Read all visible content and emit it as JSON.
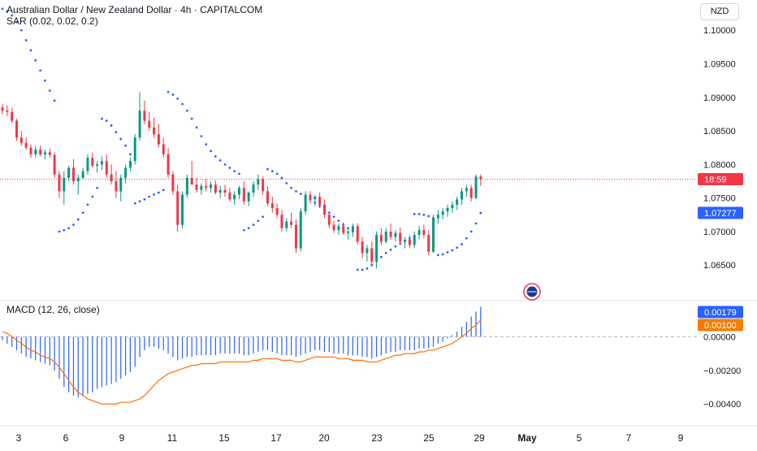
{
  "header": {
    "title": "Australian Dollar / New Zealand Dollar · 4h · CAPITALCOM",
    "sar_label": "SAR (0.02, 0.02, 0.2)",
    "currency": "NZD"
  },
  "macd_panel": {
    "label": "MACD (12, 26, close)"
  },
  "chart_data": [
    {
      "type": "candlestick",
      "title": "Australian Dollar / New Zealand Dollar · 4h · CAPITALCOM",
      "x_tick_labels": [
        "3",
        "6",
        "9",
        "11",
        "15",
        "17",
        "20",
        "23",
        "25",
        "29",
        "May",
        "5",
        "7",
        "9"
      ],
      "y_ticks": [
        1.065,
        1.07,
        1.075,
        1.08,
        1.085,
        1.09,
        1.095,
        1.1
      ],
      "y_tick_labels": [
        "1.06500",
        "1.07000",
        "1.07500",
        "1.08000",
        "1.08500",
        "1.09000",
        "1.09500",
        "1.10000"
      ],
      "ylim": [
        1.0597,
        1.1045
      ],
      "price_badge": {
        "value": 1.0778,
        "label": "18:59",
        "color": "#f23645"
      },
      "sar_badge": {
        "value": 1.07277,
        "label": "1.07277",
        "color": "#2962ff"
      },
      "up_color": "#089981",
      "down_color": "#f23645",
      "grid": false,
      "ohlc": [
        [
          1.0885,
          1.089,
          1.0875,
          1.088
        ],
        [
          1.088,
          1.0888,
          1.0872,
          1.0878
        ],
        [
          1.0878,
          1.0884,
          1.0862,
          1.0865
        ],
        [
          1.0865,
          1.0868,
          1.0835,
          1.084
        ],
        [
          1.084,
          1.085,
          1.0828,
          1.0832
        ],
        [
          1.0832,
          1.084,
          1.0822,
          1.0825
        ],
        [
          1.0825,
          1.083,
          1.081,
          1.0815
        ],
        [
          1.0815,
          1.0828,
          1.081,
          1.0822
        ],
        [
          1.0822,
          1.0828,
          1.0812,
          1.0815
        ],
        [
          1.0815,
          1.0822,
          1.0808,
          1.0818
        ],
        [
          1.0818,
          1.0824,
          1.081,
          1.0814
        ],
        [
          1.0814,
          1.0818,
          1.078,
          1.0785
        ],
        [
          1.0785,
          1.079,
          1.075,
          1.076
        ],
        [
          1.076,
          1.079,
          1.074,
          1.078
        ],
        [
          1.078,
          1.0798,
          1.0775,
          1.0795
        ],
        [
          1.0795,
          1.0808,
          1.077,
          1.0775
        ],
        [
          1.0775,
          1.0785,
          1.0755,
          1.078
        ],
        [
          1.078,
          1.0795,
          1.0778,
          1.079
        ],
        [
          1.079,
          1.0815,
          1.0785,
          1.081
        ],
        [
          1.081,
          1.0818,
          1.0795,
          1.0798
        ],
        [
          1.0798,
          1.0805,
          1.0788,
          1.08
        ],
        [
          1.08,
          1.0812,
          1.0792,
          1.0805
        ],
        [
          1.0805,
          1.0815,
          1.078,
          1.0785
        ],
        [
          1.0785,
          1.08,
          1.077,
          1.0775
        ],
        [
          1.0775,
          1.079,
          1.075,
          1.076
        ],
        [
          1.076,
          1.0785,
          1.0745,
          1.078
        ],
        [
          1.078,
          1.08,
          1.0772,
          1.0795
        ],
        [
          1.0795,
          1.081,
          1.079,
          1.0805
        ],
        [
          1.0805,
          1.0845,
          1.08,
          1.084
        ],
        [
          1.084,
          1.0908,
          1.0835,
          1.088
        ],
        [
          1.088,
          1.0895,
          1.086,
          1.0865
        ],
        [
          1.0865,
          1.0878,
          1.085,
          1.0855
        ],
        [
          1.0855,
          1.087,
          1.084,
          1.0845
        ],
        [
          1.0845,
          1.086,
          1.0825,
          1.083
        ],
        [
          1.083,
          1.084,
          1.081,
          1.0815
        ],
        [
          1.0815,
          1.0825,
          1.078,
          1.0785
        ],
        [
          1.0785,
          1.079,
          1.0755,
          1.076
        ],
        [
          1.076,
          1.077,
          1.07,
          1.071
        ],
        [
          1.071,
          1.076,
          1.0705,
          1.0755
        ],
        [
          1.0755,
          1.0785,
          1.075,
          1.078
        ],
        [
          1.078,
          1.0805,
          1.077,
          1.077
        ],
        [
          1.077,
          1.078,
          1.0758,
          1.0762
        ],
        [
          1.0762,
          1.0772,
          1.0755,
          1.0768
        ],
        [
          1.0768,
          1.0778,
          1.076,
          1.0765
        ],
        [
          1.0765,
          1.0775,
          1.0758,
          1.077
        ],
        [
          1.077,
          1.0776,
          1.0755,
          1.0758
        ],
        [
          1.0758,
          1.0768,
          1.075,
          1.0762
        ],
        [
          1.0762,
          1.077,
          1.0752,
          1.0758
        ],
        [
          1.0758,
          1.0765,
          1.0745,
          1.0748
        ],
        [
          1.0748,
          1.076,
          1.074,
          1.0755
        ],
        [
          1.0755,
          1.0768,
          1.0748,
          1.0765
        ],
        [
          1.0765,
          1.0775,
          1.074,
          1.0745
        ],
        [
          1.0745,
          1.076,
          1.0738,
          1.0758
        ],
        [
          1.0758,
          1.0775,
          1.0752,
          1.077
        ],
        [
          1.077,
          1.0785,
          1.0762,
          1.0778
        ],
        [
          1.0778,
          1.0782,
          1.0755,
          1.076
        ],
        [
          1.076,
          1.0768,
          1.0738,
          1.0742
        ],
        [
          1.0742,
          1.0752,
          1.0728,
          1.0735
        ],
        [
          1.0735,
          1.0742,
          1.072,
          1.0725
        ],
        [
          1.0725,
          1.0732,
          1.07,
          1.0705
        ],
        [
          1.0705,
          1.072,
          1.07,
          1.0715
        ],
        [
          1.0715,
          1.0728,
          1.0705,
          1.071
        ],
        [
          1.071,
          1.0718,
          1.0668,
          1.0675
        ],
        [
          1.0675,
          1.0735,
          1.067,
          1.073
        ],
        [
          1.073,
          1.076,
          1.0725,
          1.0755
        ],
        [
          1.0755,
          1.076,
          1.0742,
          1.0748
        ],
        [
          1.0748,
          1.0755,
          1.0738,
          1.0752
        ],
        [
          1.0752,
          1.0758,
          1.0735,
          1.074
        ],
        [
          1.074,
          1.0748,
          1.072,
          1.0725
        ],
        [
          1.0725,
          1.073,
          1.0705,
          1.071
        ],
        [
          1.071,
          1.0716,
          1.0698,
          1.0702
        ],
        [
          1.0702,
          1.0712,
          1.0695,
          1.0708
        ],
        [
          1.0708,
          1.0714,
          1.0695,
          1.0698
        ],
        [
          1.0698,
          1.0705,
          1.0688,
          1.07
        ],
        [
          1.07,
          1.0712,
          1.0692,
          1.0708
        ],
        [
          1.0708,
          1.0712,
          1.068,
          1.0685
        ],
        [
          1.0685,
          1.0692,
          1.066,
          1.0668
        ],
        [
          1.0668,
          1.068,
          1.0655,
          1.0675
        ],
        [
          1.0675,
          1.0685,
          1.065,
          1.0655
        ],
        [
          1.0655,
          1.07,
          1.0645,
          1.0695
        ],
        [
          1.0695,
          1.0705,
          1.068,
          1.0685
        ],
        [
          1.0685,
          1.0705,
          1.0682,
          1.07
        ],
        [
          1.07,
          1.0712,
          1.0688,
          1.0692
        ],
        [
          1.0692,
          1.0702,
          1.0685,
          1.0698
        ],
        [
          1.0698,
          1.0706,
          1.068,
          1.0685
        ],
        [
          1.0685,
          1.0692,
          1.0675,
          1.0688
        ],
        [
          1.0688,
          1.0695,
          1.0675,
          1.068
        ],
        [
          1.068,
          1.07,
          1.0675,
          1.0695
        ],
        [
          1.0695,
          1.0708,
          1.0688,
          1.0702
        ],
        [
          1.0702,
          1.071,
          1.069,
          1.0695
        ],
        [
          1.0695,
          1.0702,
          1.0665,
          1.067
        ],
        [
          1.067,
          1.0725,
          1.0668,
          1.072
        ],
        [
          1.072,
          1.0732,
          1.0712,
          1.0725
        ],
        [
          1.0725,
          1.0735,
          1.0718,
          1.073
        ],
        [
          1.073,
          1.074,
          1.0722,
          1.0735
        ],
        [
          1.0735,
          1.0745,
          1.0728,
          1.074
        ],
        [
          1.074,
          1.0752,
          1.0732,
          1.0748
        ],
        [
          1.0748,
          1.0765,
          1.074,
          1.076
        ],
        [
          1.076,
          1.077,
          1.0752,
          1.0765
        ],
        [
          1.0765,
          1.077,
          1.0745,
          1.075
        ],
        [
          1.075,
          1.0785,
          1.0748,
          1.0782
        ],
        [
          1.0782,
          1.0785,
          1.0768,
          1.0778
        ]
      ],
      "sar": [
        [
          0,
          1.1032
        ],
        [
          1,
          1.1028
        ],
        [
          2,
          1.1022
        ],
        [
          3,
          1.1012
        ],
        [
          4,
          1.1
        ],
        [
          5,
          1.0985
        ],
        [
          6,
          1.097
        ],
        [
          7,
          1.0955
        ],
        [
          8,
          1.094
        ],
        [
          9,
          1.0925
        ],
        [
          10,
          1.091
        ],
        [
          11,
          1.0895
        ],
        [
          12,
          1.07
        ],
        [
          13,
          1.0702
        ],
        [
          14,
          1.0705
        ],
        [
          15,
          1.071
        ],
        [
          16,
          1.0718
        ],
        [
          17,
          1.0728
        ],
        [
          18,
          1.074
        ],
        [
          19,
          1.0752
        ],
        [
          20,
          1.0765
        ],
        [
          21,
          1.0868
        ],
        [
          22,
          1.0865
        ],
        [
          23,
          1.0858
        ],
        [
          24,
          1.0848
        ],
        [
          25,
          1.0838
        ],
        [
          26,
          1.0828
        ],
        [
          27,
          1.0815
        ],
        [
          28,
          1.0742
        ],
        [
          29,
          1.0745
        ],
        [
          30,
          1.0748
        ],
        [
          31,
          1.0752
        ],
        [
          32,
          1.0755
        ],
        [
          33,
          1.0758
        ],
        [
          34,
          1.0762
        ],
        [
          35,
          1.0908
        ],
        [
          36,
          1.0904
        ],
        [
          37,
          1.0898
        ],
        [
          38,
          1.089
        ],
        [
          39,
          1.088
        ],
        [
          40,
          1.0868
        ],
        [
          41,
          1.0855
        ],
        [
          42,
          1.0842
        ],
        [
          43,
          1.083
        ],
        [
          44,
          1.082
        ],
        [
          45,
          1.0812
        ],
        [
          46,
          1.0806
        ],
        [
          47,
          1.08
        ],
        [
          48,
          1.0795
        ],
        [
          49,
          1.079
        ],
        [
          50,
          1.0786
        ],
        [
          51,
          1.0702
        ],
        [
          52,
          1.0705
        ],
        [
          53,
          1.071
        ],
        [
          54,
          1.0716
        ],
        [
          55,
          1.0722
        ],
        [
          56,
          1.0793
        ],
        [
          57,
          1.079
        ],
        [
          58,
          1.0786
        ],
        [
          59,
          1.078
        ],
        [
          60,
          1.0772
        ],
        [
          61,
          1.0765
        ],
        [
          62,
          1.076
        ],
        [
          63,
          1.0756
        ],
        [
          64,
          1.0752
        ],
        [
          65,
          1.0748
        ],
        [
          66,
          1.0743
        ],
        [
          67,
          1.0738
        ],
        [
          68,
          1.0733
        ],
        [
          69,
          1.0728
        ],
        [
          70,
          1.0722
        ],
        [
          71,
          1.0716
        ],
        [
          72,
          1.071
        ],
        [
          73,
          1.0705
        ],
        [
          74,
          1.07
        ],
        [
          75,
          1.0643
        ],
        [
          76,
          1.0643
        ],
        [
          77,
          1.0645
        ],
        [
          78,
          1.065
        ],
        [
          79,
          1.0656
        ],
        [
          80,
          1.0662
        ],
        [
          81,
          1.0668
        ],
        [
          82,
          1.0673
        ],
        [
          83,
          1.0678
        ],
        [
          84,
          1.0682
        ],
        [
          85,
          1.0686
        ],
        [
          86,
          1.069
        ],
        [
          87,
          1.0726
        ],
        [
          88,
          1.0726
        ],
        [
          89,
          1.0725
        ],
        [
          90,
          1.0723
        ],
        [
          91,
          1.072
        ],
        [
          92,
          1.0665
        ],
        [
          93,
          1.0666
        ],
        [
          94,
          1.0669
        ],
        [
          95,
          1.0672
        ],
        [
          96,
          1.0676
        ],
        [
          97,
          1.0681
        ],
        [
          98,
          1.069
        ],
        [
          99,
          1.07
        ],
        [
          100,
          1.0712
        ],
        [
          101,
          1.07277
        ]
      ]
    },
    {
      "type": "bar",
      "title": "MACD (12, 26, close)",
      "y_ticks": [
        0.0,
        -0.002,
        -0.004
      ],
      "y_tick_labels": [
        "0.00000",
        "−0.00200",
        "−0.00400"
      ],
      "ylim": [
        -0.0053,
        0.0021
      ],
      "histogram_badge": {
        "value": 0.00179,
        "label": "0.00179",
        "color": "#2962ff"
      },
      "signal_badge": {
        "value": 0.001,
        "label": "0.00100",
        "color": "#f57c00"
      },
      "histogram_color": "#2962ff",
      "signal_color": "#ff6d00",
      "histogram": [
        -0.0002,
        -0.0004,
        -0.0006,
        -0.0008,
        -0.001,
        -0.0012,
        -0.0013,
        -0.0014,
        -0.0015,
        -0.0016,
        -0.0017,
        -0.002,
        -0.0025,
        -0.003,
        -0.0033,
        -0.0035,
        -0.0036,
        -0.0035,
        -0.0034,
        -0.0033,
        -0.0031,
        -0.003,
        -0.0029,
        -0.0028,
        -0.0027,
        -0.0025,
        -0.0023,
        -0.0021,
        -0.0018,
        -0.0012,
        -0.0008,
        -0.0006,
        -0.0006,
        -0.0007,
        -0.0008,
        -0.001,
        -0.0012,
        -0.0014,
        -0.0013,
        -0.0012,
        -0.0012,
        -0.0011,
        -0.0011,
        -0.0011,
        -0.0011,
        -0.0011,
        -0.001,
        -0.001,
        -0.001,
        -0.001,
        -0.001,
        -0.0011,
        -0.0011,
        -0.001,
        -0.0009,
        -0.0008,
        -0.0008,
        -0.0009,
        -0.001,
        -0.0011,
        -0.0011,
        -0.0011,
        -0.0012,
        -0.0011,
        -0.001,
        -0.0009,
        -0.0008,
        -0.0008,
        -0.0009,
        -0.0009,
        -0.001,
        -0.001,
        -0.001,
        -0.0011,
        -0.0011,
        -0.0011,
        -0.0012,
        -0.0012,
        -0.0013,
        -0.0012,
        -0.0011,
        -0.001,
        -0.0009,
        -0.0009,
        -0.0008,
        -0.0008,
        -0.0008,
        -0.0008,
        -0.0007,
        -0.0007,
        -0.0007,
        -0.0006,
        -0.0004,
        -0.0003,
        -0.0001,
        0.0001,
        0.0003,
        0.0006,
        0.0009,
        0.0012,
        0.0015,
        0.00179
      ],
      "signal": [
        0.0003,
        0.0002,
        0.0,
        -0.0002,
        -0.0004,
        -0.0006,
        -0.0008,
        -0.0009,
        -0.0011,
        -0.0012,
        -0.0013,
        -0.0015,
        -0.0018,
        -0.0022,
        -0.0026,
        -0.003,
        -0.0033,
        -0.0035,
        -0.0037,
        -0.0038,
        -0.0039,
        -0.004,
        -0.004,
        -0.004,
        -0.004,
        -0.0039,
        -0.0039,
        -0.0039,
        -0.0038,
        -0.0037,
        -0.0035,
        -0.0032,
        -0.0029,
        -0.0026,
        -0.0024,
        -0.0022,
        -0.0021,
        -0.002,
        -0.0019,
        -0.0018,
        -0.0017,
        -0.0017,
        -0.0016,
        -0.0016,
        -0.0016,
        -0.0016,
        -0.0015,
        -0.0015,
        -0.0015,
        -0.0015,
        -0.0015,
        -0.0015,
        -0.0015,
        -0.0014,
        -0.0014,
        -0.0013,
        -0.0013,
        -0.0013,
        -0.0013,
        -0.0014,
        -0.0014,
        -0.0014,
        -0.0015,
        -0.0015,
        -0.0014,
        -0.0013,
        -0.0012,
        -0.0012,
        -0.0012,
        -0.0012,
        -0.0012,
        -0.0013,
        -0.0013,
        -0.0013,
        -0.0014,
        -0.0014,
        -0.0014,
        -0.0015,
        -0.0015,
        -0.0015,
        -0.0014,
        -0.0013,
        -0.0012,
        -0.0011,
        -0.0011,
        -0.001,
        -0.001,
        -0.001,
        -0.0009,
        -0.0009,
        -0.0008,
        -0.0008,
        -0.0007,
        -0.0006,
        -0.0005,
        -0.0004,
        -0.0002,
        0.0,
        0.0002,
        0.0005,
        0.0007,
        0.001
      ]
    }
  ]
}
